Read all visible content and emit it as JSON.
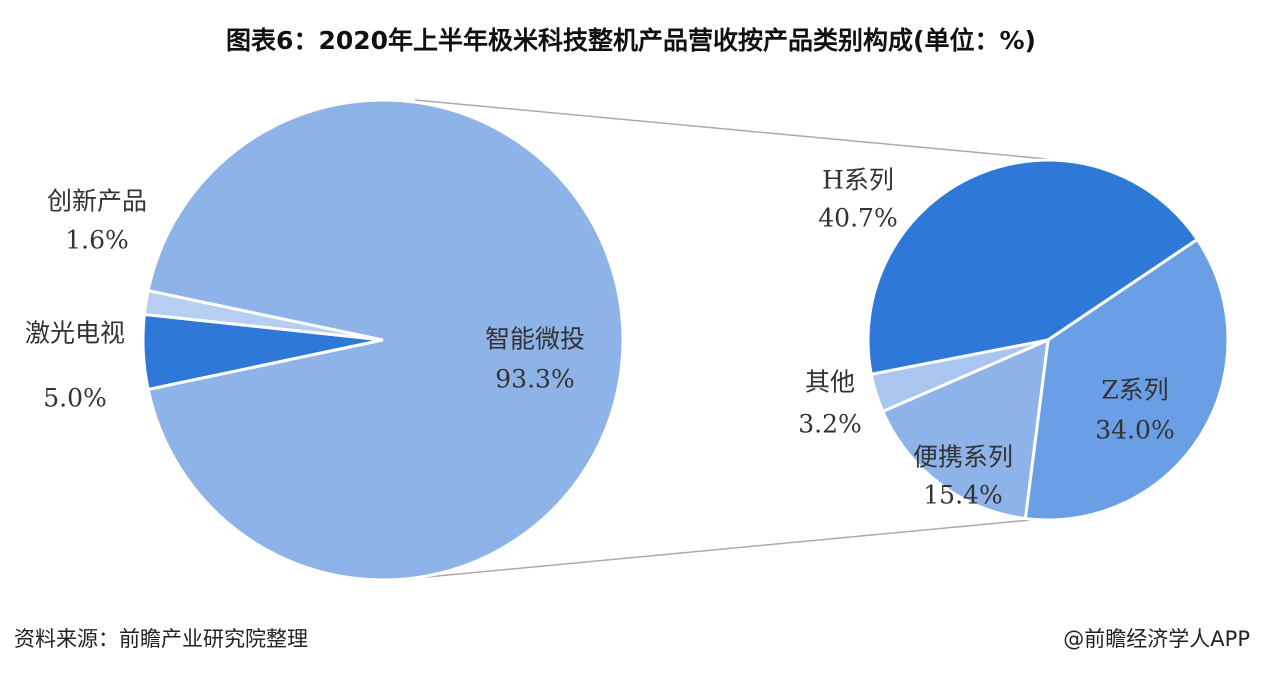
{
  "title": "图表6：2020年上半年极米科技整机产品营收按产品类别构成(单位：%)",
  "chart_data": [
    {
      "type": "pie",
      "categories": [
        "激光电视",
        "创新产品",
        "智能微投"
      ],
      "values": [
        5.0,
        1.6,
        93.3
      ],
      "value_labels": [
        "5.0%",
        "1.6%",
        "93.3%"
      ],
      "colors": [
        "#2e78d8",
        "#b5cef1",
        "#8db3e8"
      ]
    },
    {
      "type": "pie",
      "categories": [
        "H系列",
        "Z系列",
        "便携系列",
        "其他"
      ],
      "values": [
        40.7,
        34.0,
        15.4,
        3.2
      ],
      "value_labels": [
        "40.7%",
        "34.0%",
        "15.4%",
        "3.2%"
      ],
      "colors": [
        "#2e78d8",
        "#6a9fe6",
        "#8db3e8",
        "#a9c6f0"
      ]
    }
  ],
  "source": "资料来源：前瞻产业研究院整理",
  "credit": "@前瞻经济学人APP"
}
